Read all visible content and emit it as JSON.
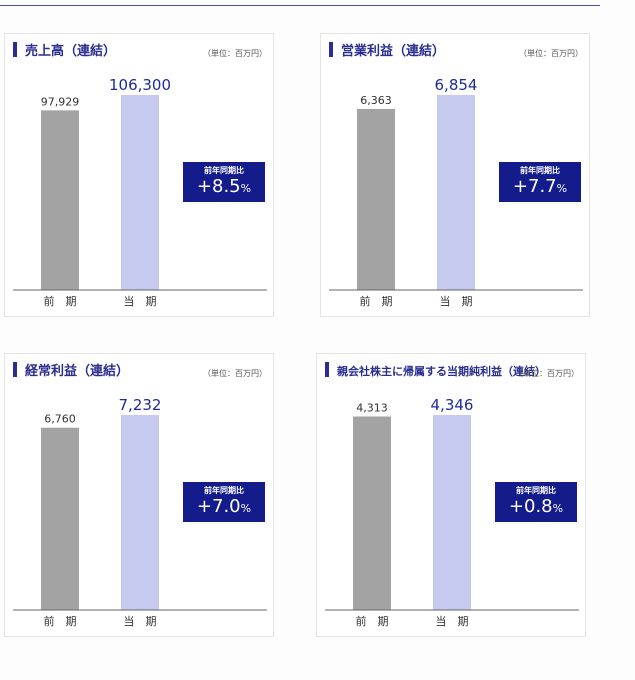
{
  "page": {},
  "chart_data": [
    {
      "type": "bar",
      "title": "売上高（連結）",
      "unit": "（単位：百万円）",
      "categories": [
        "前　期",
        "当　期"
      ],
      "values": [
        97929,
        106300
      ],
      "value_labels": [
        "97,929",
        "106,300"
      ],
      "ylim": [
        0,
        106300
      ],
      "colors": [
        "#a3a3a3",
        "#c6caee"
      ],
      "badge": {
        "label": "前年同期比",
        "value": "+8.5",
        "unit": "%"
      }
    },
    {
      "type": "bar",
      "title": "営業利益（連結）",
      "unit": "（単位：百万円）",
      "categories": [
        "前　期",
        "当　期"
      ],
      "values": [
        6363,
        6854
      ],
      "value_labels": [
        "6,363",
        "6,854"
      ],
      "ylim": [
        0,
        6854
      ],
      "colors": [
        "#a3a3a3",
        "#c6caee"
      ],
      "badge": {
        "label": "前年同期比",
        "value": "+7.7",
        "unit": "%"
      }
    },
    {
      "type": "bar",
      "title": "経常利益（連結）",
      "unit": "（単位：百万円）",
      "categories": [
        "前　期",
        "当　期"
      ],
      "values": [
        6760,
        7232
      ],
      "value_labels": [
        "6,760",
        "7,232"
      ],
      "ylim": [
        0,
        7232
      ],
      "colors": [
        "#a3a3a3",
        "#c6caee"
      ],
      "badge": {
        "label": "前年同期比",
        "value": "+7.0",
        "unit": "%"
      }
    },
    {
      "type": "bar",
      "title": "親会社株主に帰属する当期純利益（連結）",
      "unit": "（単位：百万円）",
      "categories": [
        "前　期",
        "当　期"
      ],
      "values": [
        4313,
        4346
      ],
      "value_labels": [
        "4,313",
        "4,346"
      ],
      "ylim": [
        0,
        4346
      ],
      "colors": [
        "#a3a3a3",
        "#c6caee"
      ],
      "badge": {
        "label": "前年同期比",
        "value": "+0.8",
        "unit": "%"
      }
    }
  ]
}
